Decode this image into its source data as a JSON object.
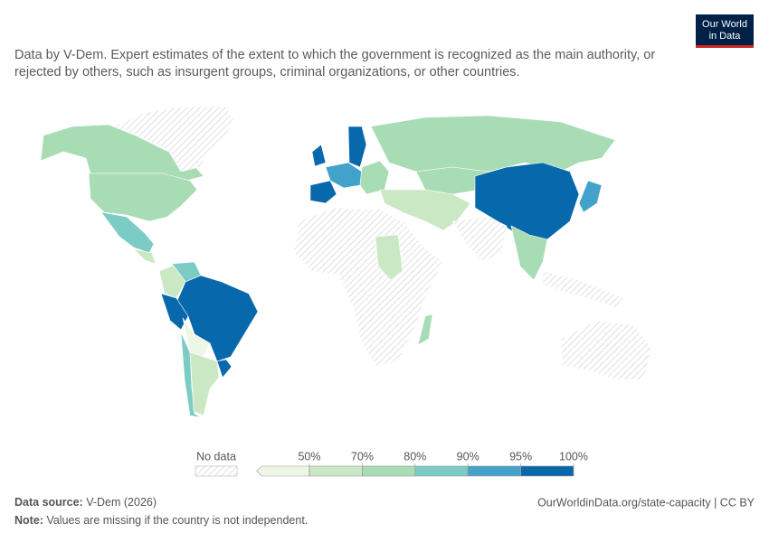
{
  "header": {
    "subtitle_lines": [
      "Data by V-Dem. Expert estimates of the extent to which the government is recognized as the main authority, or",
      "rejected by others, such as insurgent groups, criminal organizations, or other countries."
    ],
    "logo_lines": [
      "Our World",
      "in Data"
    ]
  },
  "legend": {
    "no_data_label": "No data",
    "colors": [
      "#eef7e6",
      "#cbe8c4",
      "#a8dcb5",
      "#7bccc4",
      "#43a2ca",
      "#0868ac"
    ],
    "ticks": [
      {
        "value": 50,
        "label": "50%"
      },
      {
        "value": 70,
        "label": "70%"
      },
      {
        "value": 80,
        "label": "80%"
      },
      {
        "value": 90,
        "label": "90%"
      },
      {
        "value": 95,
        "label": "95%"
      },
      {
        "value": 100,
        "label": "100%"
      }
    ]
  },
  "footer": {
    "source_label": "Data source:",
    "source": "V-Dem (2026)",
    "url": "OurWorldinData.org/state-capacity | CC BY",
    "note_label": "Note:",
    "note": "Values are missing if the country is not independent."
  }
}
